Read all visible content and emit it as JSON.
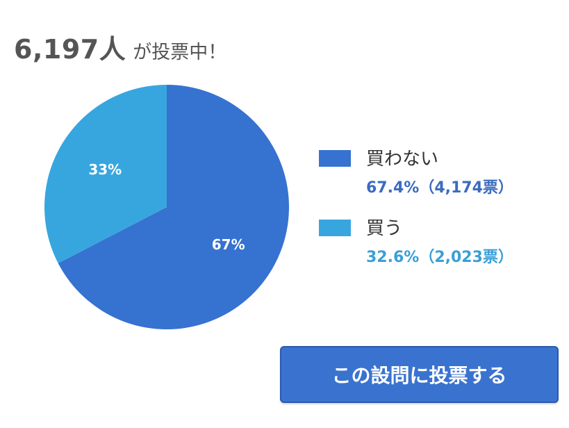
{
  "header": {
    "count": "6,197人",
    "suffix": "が投票中！"
  },
  "chart_data": {
    "type": "pie",
    "slices": [
      {
        "name": "買わない",
        "value": 67.4,
        "label": "67%",
        "detail": "67.4%（4,174票）",
        "color": "#3672d0",
        "text_color": "#3a6bbf"
      },
      {
        "name": "買う",
        "value": 32.6,
        "label": "33%",
        "detail": "32.6%（2,023票）",
        "color": "#38a6de",
        "text_color": "#3a9fd8"
      }
    ],
    "legend_position": "right"
  },
  "button": {
    "label": "この設問に投票する",
    "color": "#3a73cf"
  }
}
